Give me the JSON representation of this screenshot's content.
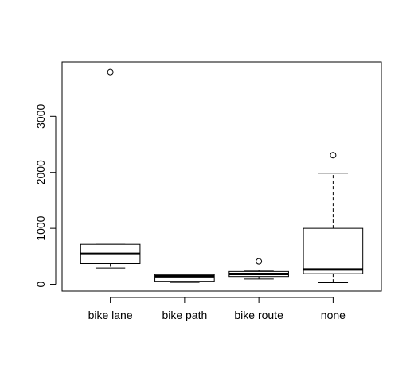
{
  "chart_data": {
    "type": "box",
    "title": "",
    "xlabel": "",
    "ylabel": "",
    "ylim": [
      -120,
      3970
    ],
    "y_ticks": [
      0,
      1000,
      2000,
      3000
    ],
    "y_tick_labels": [
      "0",
      "1000",
      "2000",
      "3000"
    ],
    "categories": [
      "bike lane",
      "bike path",
      "bike route",
      "none"
    ],
    "boxes": [
      {
        "label": "bike lane",
        "min": 290,
        "q1": 370,
        "median": 545,
        "q3": 715,
        "max": 715,
        "outliers": [
          3790
        ]
      },
      {
        "label": "bike path",
        "min": 35,
        "q1": 55,
        "median": 145,
        "q3": 175,
        "max": 180,
        "outliers": []
      },
      {
        "label": "bike route",
        "min": 95,
        "q1": 140,
        "median": 185,
        "q3": 230,
        "max": 250,
        "outliers": [
          410
        ]
      },
      {
        "label": "none",
        "min": 30,
        "q1": 190,
        "median": 265,
        "q3": 1000,
        "max": 1985,
        "outliers": [
          2305
        ]
      }
    ]
  }
}
